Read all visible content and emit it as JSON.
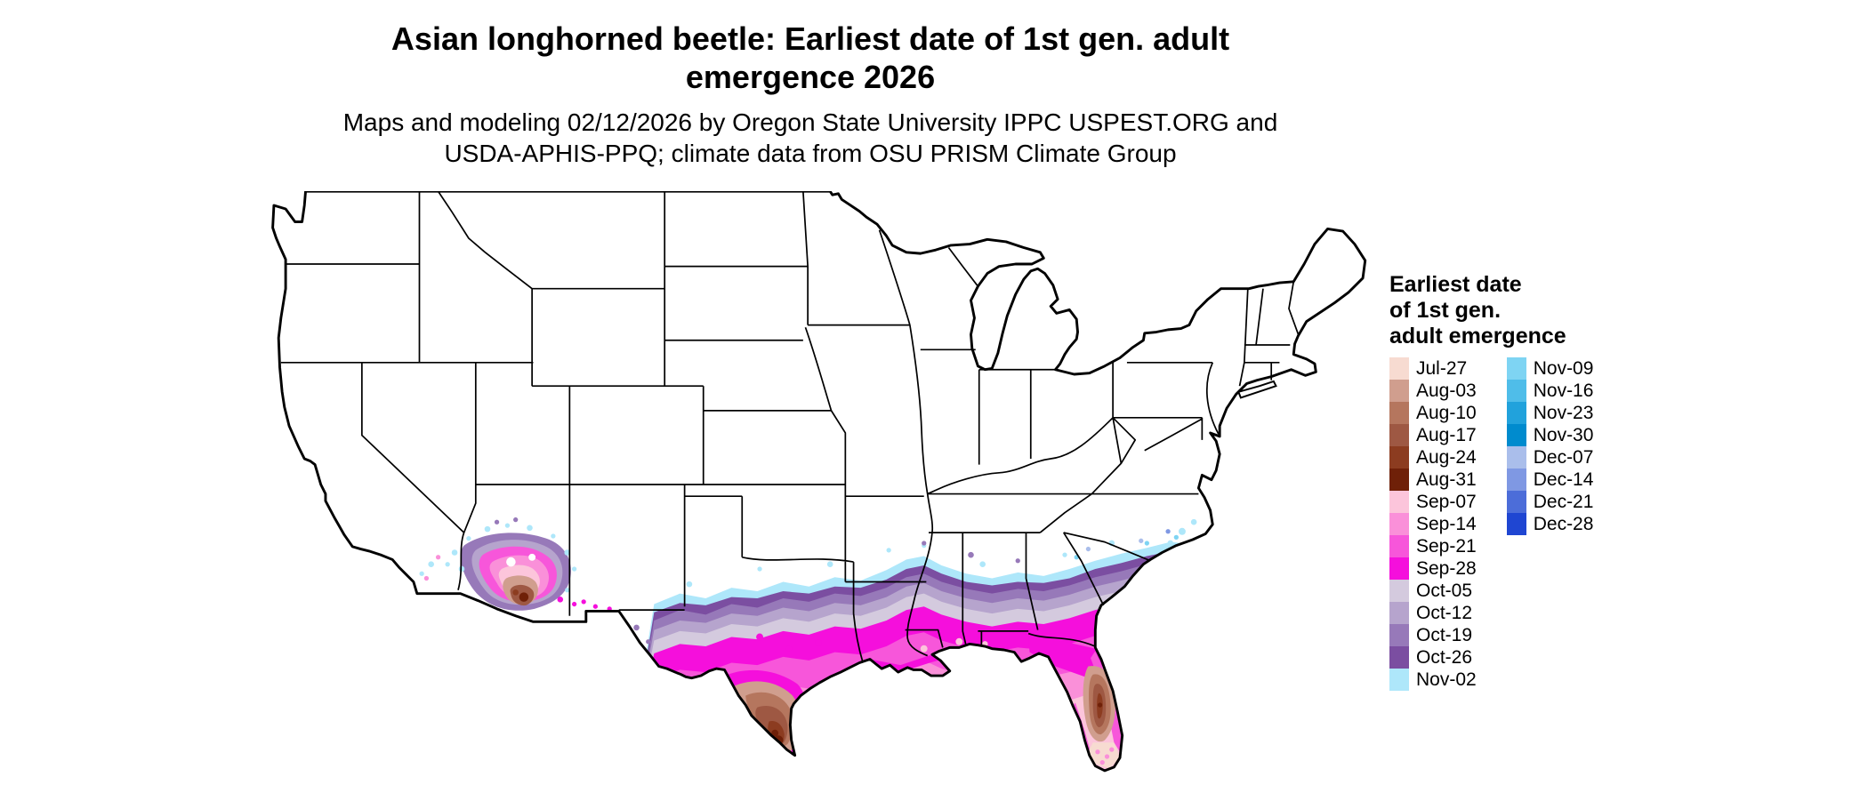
{
  "title": {
    "line1": "Asian longhorned beetle: Earliest date of 1st gen. adult",
    "line2": "emergence 2026"
  },
  "subtitle": {
    "line1": "Maps and modeling 02/12/2026 by Oregon State University IPPC USPEST.ORG and",
    "line2": "USDA-APHIS-PPQ; climate data from OSU PRISM Climate Group"
  },
  "legend": {
    "title_lines": [
      "Earliest date",
      "of 1st gen.",
      "adult emergence"
    ],
    "columns": [
      [
        {
          "label": "Jul-27",
          "color": "#f7dbd1"
        },
        {
          "label": "Aug-03",
          "color": "#d09e8e"
        },
        {
          "label": "Aug-10",
          "color": "#b5765e"
        },
        {
          "label": "Aug-17",
          "color": "#9e5843"
        },
        {
          "label": "Aug-24",
          "color": "#8c3c20"
        },
        {
          "label": "Aug-31",
          "color": "#6f2008"
        },
        {
          "label": "Sep-07",
          "color": "#fcc5db"
        },
        {
          "label": "Sep-14",
          "color": "#fa90d9"
        },
        {
          "label": "Sep-21",
          "color": "#f756da"
        },
        {
          "label": "Sep-28",
          "color": "#f50fdc"
        },
        {
          "label": "Oct-05",
          "color": "#d4cade"
        },
        {
          "label": "Oct-12",
          "color": "#b6a4cd"
        },
        {
          "label": "Oct-19",
          "color": "#9779b9"
        },
        {
          "label": "Oct-26",
          "color": "#7b4ea1"
        },
        {
          "label": "Nov-02",
          "color": "#aee7fa"
        }
      ],
      [
        {
          "label": "Nov-09",
          "color": "#7ed4f3"
        },
        {
          "label": "Nov-16",
          "color": "#4fbde9"
        },
        {
          "label": "Nov-23",
          "color": "#21a2dc"
        },
        {
          "label": "Nov-30",
          "color": "#008bce"
        },
        {
          "label": "Dec-07",
          "color": "#aabeeb"
        },
        {
          "label": "Dec-14",
          "color": "#7f98e3"
        },
        {
          "label": "Dec-21",
          "color": "#4c6dd9"
        },
        {
          "label": "Dec-28",
          "color": "#1f46d2"
        }
      ]
    ]
  }
}
